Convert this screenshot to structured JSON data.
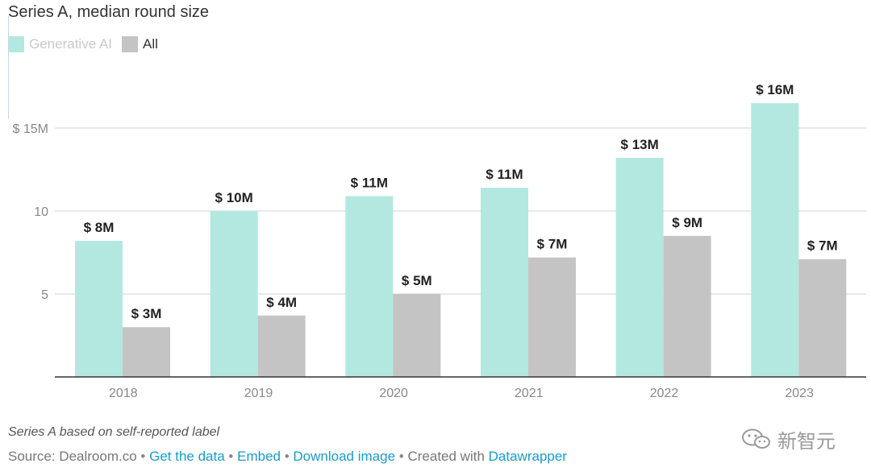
{
  "title": "Series A, median round size",
  "colors": {
    "generative_ai": "#b2e8e0",
    "all": "#c4c4c4",
    "text_dark": "#222222",
    "link": "#1a9ac9"
  },
  "legend": [
    {
      "name": "Generative AI",
      "color": "#b2e8e0",
      "text_color": "#c9c9c9"
    },
    {
      "name": "All",
      "color": "#c4c4c4",
      "text_color": "#333333"
    }
  ],
  "chart_data": {
    "type": "bar",
    "categories": [
      "2018",
      "2019",
      "2020",
      "2021",
      "2022",
      "2023"
    ],
    "series": [
      {
        "name": "Generative AI",
        "values": [
          8.2,
          10.0,
          10.9,
          11.4,
          13.2,
          16.5
        ],
        "labels": [
          "$ 8M",
          "$ 10M",
          "$ 11M",
          "$ 11M",
          "$ 13M",
          "$ 16M"
        ]
      },
      {
        "name": "All",
        "values": [
          3.0,
          3.7,
          5.0,
          7.2,
          8.5,
          7.1
        ],
        "labels": [
          "$ 3M",
          "$ 4M",
          "$ 5M",
          "$ 7M",
          "$ 9M",
          "$ 7M"
        ]
      }
    ],
    "yticks": [
      5,
      10,
      15
    ],
    "ytick_labels": [
      "5",
      "10",
      "$ 15M"
    ],
    "ylim": [
      0,
      15
    ],
    "grid": true,
    "legend_position": "top-left"
  },
  "footer": {
    "note": "Series A based on self-reported label",
    "source_prefix": "Source: Dealroom.co",
    "sep": "•",
    "link_data": "Get the data",
    "link_embed": "Embed",
    "link_download": "Download image",
    "created_with": "Created with",
    "link_datawrapper": "Datawrapper"
  },
  "watermark": {
    "text": "新智元",
    "icon": "wechat-icon"
  }
}
